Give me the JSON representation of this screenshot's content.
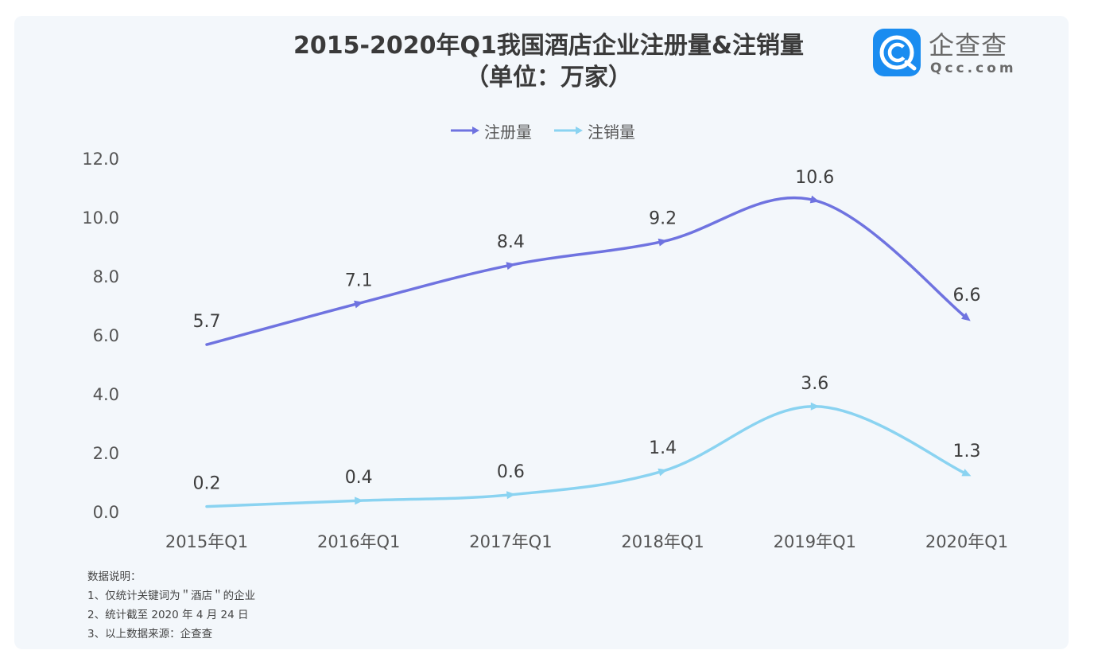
{
  "title": "2015-2020年Q1我国酒店企业注册量&注销量",
  "subtitle": "（单位：万家）",
  "logo": {
    "name": "企查查",
    "domain": "Qcc.com",
    "color": "#1a8cf0"
  },
  "chart_data": {
    "type": "line",
    "title": "2015-2020年Q1我国酒店企业注册量&注销量",
    "subtitle": "（单位：万家）",
    "categories": [
      "2015年Q1",
      "2016年Q1",
      "2017年Q1",
      "2018年Q1",
      "2019年Q1",
      "2020年Q1"
    ],
    "series": [
      {
        "name": "注册量",
        "values": [
          5.7,
          7.1,
          8.4,
          9.2,
          10.6,
          6.6
        ],
        "color": "#6f73e0"
      },
      {
        "name": "注销量",
        "values": [
          0.2,
          0.4,
          0.6,
          1.4,
          3.6,
          1.3
        ],
        "color": "#8ad3f1"
      }
    ],
    "y_ticks": [
      "0.0",
      "2.0",
      "4.0",
      "6.0",
      "8.0",
      "10.0",
      "12.0"
    ],
    "ylim": [
      0,
      12
    ],
    "grid": false,
    "legend_position": "top-center"
  },
  "notes": [
    "数据说明：",
    "1、仅统计关键词为＂酒店＂的企业",
    "2、统计截至 2020 年 4 月 24 日",
    "3、以上数据来源：企查查"
  ]
}
